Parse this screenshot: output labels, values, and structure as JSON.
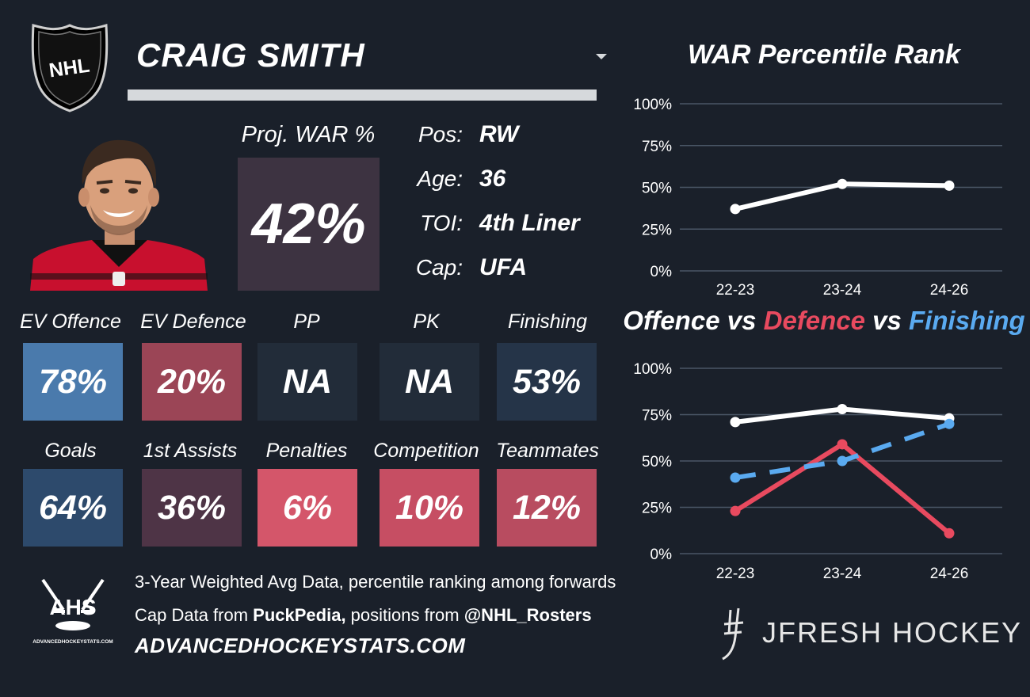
{
  "header": {
    "league_logo": "nhl-logo",
    "player_name": "CRAIG SMITH"
  },
  "projection": {
    "label": "Proj. WAR %",
    "value": "42%"
  },
  "info": [
    {
      "label": "Pos:",
      "value": "RW"
    },
    {
      "label": "Age:",
      "value": "36"
    },
    {
      "label": "TOI:",
      "value": "4th Liner"
    },
    {
      "label": "Cap:",
      "value": "UFA"
    }
  ],
  "stats_row1": [
    {
      "label": "EV Offence",
      "value": "78%",
      "color": "#4a7aac"
    },
    {
      "label": "EV Defence",
      "value": "20%",
      "color": "#9b4556"
    },
    {
      "label": "PP",
      "value": "NA",
      "color": "#222c39"
    },
    {
      "label": "PK",
      "value": "NA",
      "color": "#222c39"
    },
    {
      "label": "Finishing",
      "value": "53%",
      "color": "#253448"
    }
  ],
  "stats_row2": [
    {
      "label": "Goals",
      "value": "64%",
      "color": "#2d4a6c"
    },
    {
      "label": "1st Assists",
      "value": "36%",
      "color": "#4e3446"
    },
    {
      "label": "Penalties",
      "value": "6%",
      "color": "#d4566a"
    },
    {
      "label": "Competition",
      "value": "10%",
      "color": "#c64e63"
    },
    {
      "label": "Teammates",
      "value": "12%",
      "color": "#b84c60"
    }
  ],
  "footer": {
    "line1": "3-Year Weighted Avg Data, percentile ranking among forwards",
    "line2_pre": "Cap Data from ",
    "line2_bold1": "PuckPedia,",
    "line2_mid": " positions from ",
    "line2_bold2": "@NHL_Rosters",
    "url": "ADVANCEDHOCKEYSTATS.COM",
    "ahs_logo_text": "AHS",
    "ahs_logo_subtext": "ADVANCEDHOCKEYSTATS.COM",
    "brand": "JFRESH HOCKEY"
  },
  "colors": {
    "background": "#1a202a",
    "offence": "#ffffff",
    "defence": "#e84a5f",
    "finishing": "#5aaaf0",
    "grid": "#4a5666"
  },
  "chart_data": [
    {
      "type": "line",
      "title": "WAR Percentile Rank",
      "categories": [
        "22-23",
        "23-24",
        "24-26"
      ],
      "yticks": [
        "0%",
        "25%",
        "50%",
        "75%",
        "100%"
      ],
      "ylim": [
        0,
        100
      ],
      "grid": true,
      "series": [
        {
          "values": [
            37,
            52,
            51
          ],
          "color": "#ffffff",
          "dash": false
        }
      ]
    },
    {
      "type": "line",
      "title_parts": [
        "Offence",
        " vs ",
        "Defence",
        " vs ",
        "Finishing"
      ],
      "categories": [
        "22-23",
        "23-24",
        "24-26"
      ],
      "yticks": [
        "0%",
        "25%",
        "50%",
        "75%",
        "100%"
      ],
      "ylim": [
        0,
        100
      ],
      "grid": true,
      "series": [
        {
          "name": "Offence",
          "values": [
            71,
            78,
            73
          ],
          "color": "#ffffff",
          "dash": false
        },
        {
          "name": "Defence",
          "values": [
            23,
            59,
            11
          ],
          "color": "#e84a5f",
          "dash": false
        },
        {
          "name": "Finishing",
          "values": [
            41,
            50,
            70
          ],
          "color": "#5aaaf0",
          "dash": true
        }
      ]
    }
  ]
}
